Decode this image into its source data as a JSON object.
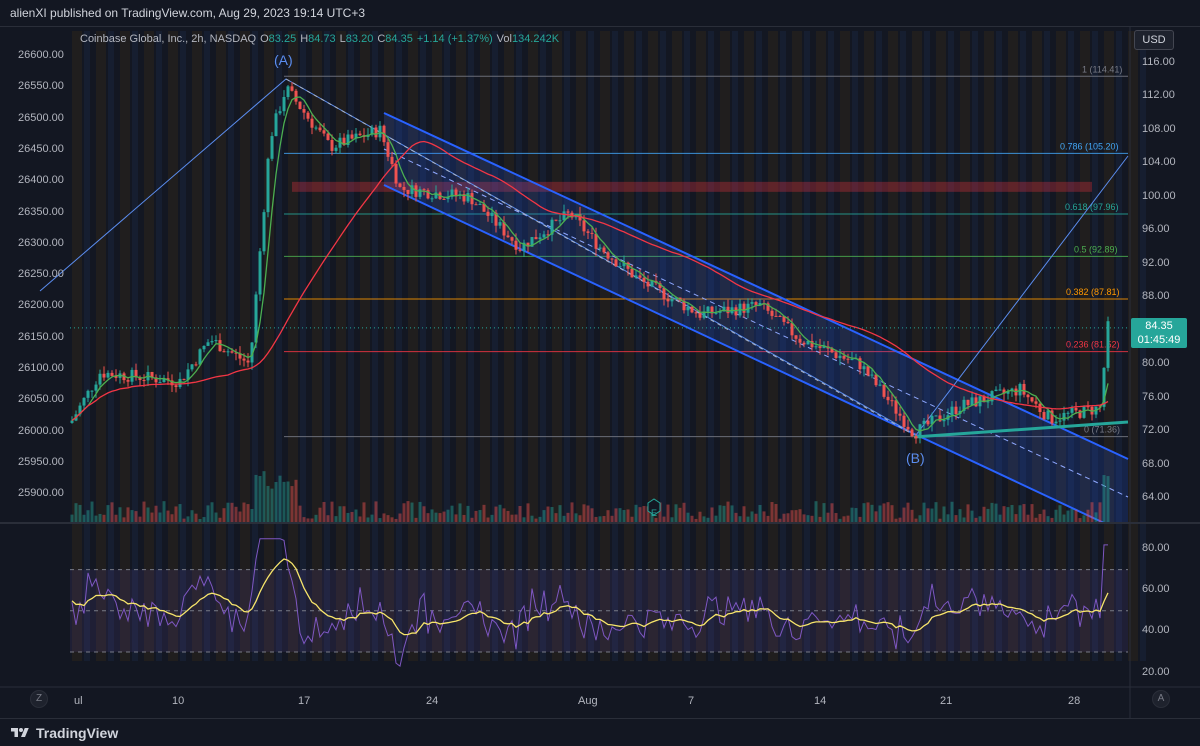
{
  "header": {
    "published": "alienXI published on TradingView.com, Aug 29, 2023 19:14 UTC+3"
  },
  "legend": {
    "symbol": "Coinbase Global, Inc., 2h, NASDAQ",
    "open_label": "O",
    "open": "83.25",
    "high_label": "H",
    "high": "84.73",
    "low_label": "L",
    "low": "83.20",
    "close_label": "C",
    "close": "84.35",
    "change": "+1.14 (+1.37%)",
    "vol_label": "Vol",
    "vol": "134.242K"
  },
  "currency": "USD",
  "price_tag": {
    "price": "84.35",
    "countdown": "01:45:49"
  },
  "left_axis": [
    "26600.00",
    "26550.00",
    "26500.00",
    "26450.00",
    "26400.00",
    "26350.00",
    "26300.00",
    "26250.00",
    "26200.00",
    "26150.00",
    "26100.00",
    "26050.00",
    "26000.00",
    "25950.00",
    "25900.00"
  ],
  "right_axis": [
    "116.00",
    "112.00",
    "108.00",
    "104.00",
    "100.00",
    "96.00",
    "92.00",
    "88.00",
    "84.00",
    "80.00",
    "76.00",
    "72.00",
    "68.00",
    "64.00"
  ],
  "rsi_axis": [
    "80.00",
    "60.00",
    "40.00",
    "20.00"
  ],
  "time_axis": [
    "ul",
    "10",
    "17",
    "24",
    "Aug",
    "7",
    "14",
    "21",
    "28"
  ],
  "wave_labels": {
    "a": "(A)",
    "b": "(B)"
  },
  "fib_levels": [
    {
      "label": "1 (114.41)",
      "color": "#787b86"
    },
    {
      "label": "0.786 (105.20)",
      "color": "#42a5f5"
    },
    {
      "label": "0.618 (97.96)",
      "color": "#26a69a"
    },
    {
      "label": "0.5 (92.89)",
      "color": "#4caf50"
    },
    {
      "label": "0.382 (87.81)",
      "color": "#ff9800"
    },
    {
      "label": "0.236 (81.52)",
      "color": "#f23645"
    },
    {
      "label": "0 (71.36)",
      "color": "#787b86"
    }
  ],
  "earnings_marker": "E",
  "bottom": {
    "brand": "TradingView"
  },
  "corner_buttons": {
    "left": "Z",
    "right": "A"
  },
  "colors": {
    "up": "#26a69a",
    "down": "#ef5350",
    "channel": "#2962ff",
    "background": "#131722"
  }
}
